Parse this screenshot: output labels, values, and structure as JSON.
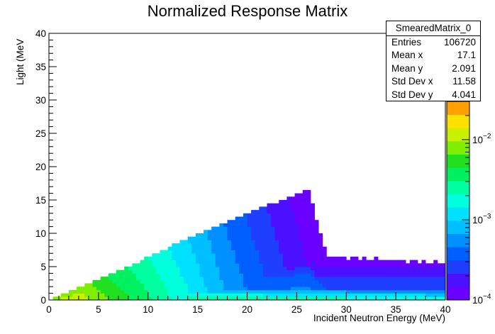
{
  "chart_data": {
    "type": "heatmap",
    "title": "Normalized Response Matrix",
    "xlabel": "Incident Neutron Energy (MeV)",
    "ylabel": "Light (MeV",
    "xlim": [
      0,
      40
    ],
    "ylim": [
      0,
      40
    ],
    "x_ticks": [
      "0",
      "5",
      "10",
      "15",
      "20",
      "25",
      "30",
      "35",
      "40"
    ],
    "y_ticks": [
      "0",
      "5",
      "10",
      "15",
      "20",
      "25",
      "30",
      "35",
      "40"
    ],
    "z_scale": "log",
    "zlim": [
      0.0001,
      0.03
    ],
    "z_tick_labels": [
      {
        "base": "10",
        "exp": "−4",
        "value": 0.0001
      },
      {
        "base": "10",
        "exp": "−3",
        "value": 0.001
      },
      {
        "base": "10",
        "exp": "−2",
        "value": 0.01
      }
    ],
    "palette": [
      "#6a00ff",
      "#4a10ff",
      "#1f3fff",
      "#0060ff",
      "#0090ff",
      "#00bfff",
      "#00e0ff",
      "#00ffdd",
      "#00ffa0",
      "#00f060",
      "#20e020",
      "#80ee00",
      "#c8f000",
      "#ffe000",
      "#ffa000"
    ],
    "ridge": {
      "x": [
        0,
        5,
        10,
        15,
        20,
        26.2
      ],
      "light_max": [
        0,
        3.0,
        6.4,
        10.0,
        13.0,
        16.6
      ]
    }
  },
  "stats_box": {
    "name": "SmearedMatrix_0",
    "rows": [
      {
        "label": "Entries",
        "value": "106720"
      },
      {
        "label": "Mean x",
        "value": "17.1"
      },
      {
        "label": "Mean y",
        "value": "2.091"
      },
      {
        "label": "Std Dev x",
        "value": "11.58"
      },
      {
        "label": "Std Dev y",
        "value": "4.041"
      }
    ]
  }
}
